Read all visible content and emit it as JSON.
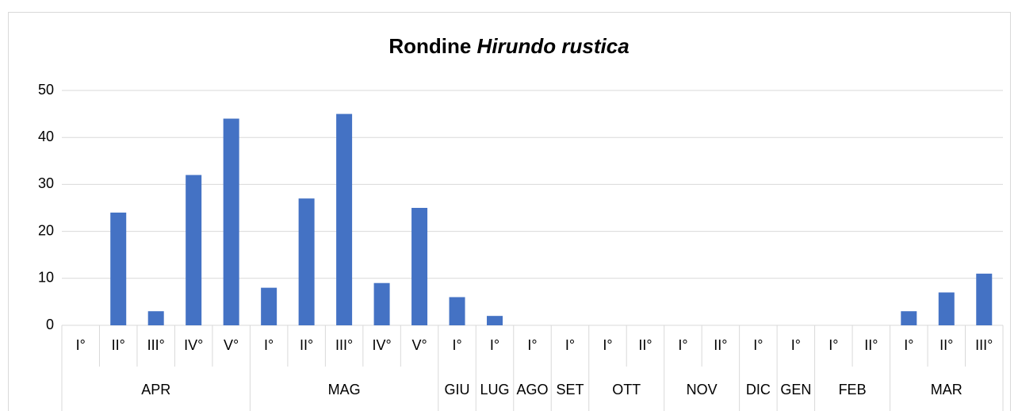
{
  "chart_data": {
    "type": "bar",
    "title_parts": [
      {
        "text": "Rondine"
      },
      {
        "text": "Hirundo rustica",
        "italic": true
      }
    ],
    "color": "#4472c4",
    "grid": true,
    "ylim": [
      0,
      50
    ],
    "yticks": [
      0,
      10,
      20,
      30,
      40,
      50
    ],
    "groups": [
      {
        "label": "APR",
        "categories": [
          "I°",
          "II°",
          "III°",
          "IV°",
          "V°"
        ],
        "values": [
          0,
          24,
          3,
          32,
          44
        ]
      },
      {
        "label": "MAG",
        "categories": [
          "I°",
          "II°",
          "III°",
          "IV°",
          "V°"
        ],
        "values": [
          8,
          27,
          45,
          9,
          25
        ]
      },
      {
        "label": "GIU",
        "categories": [
          "I°"
        ],
        "values": [
          6
        ]
      },
      {
        "label": "LUG",
        "categories": [
          "I°"
        ],
        "values": [
          2
        ]
      },
      {
        "label": "AGO",
        "categories": [
          "I°"
        ],
        "values": [
          0
        ]
      },
      {
        "label": "SET",
        "categories": [
          "I°"
        ],
        "values": [
          0
        ]
      },
      {
        "label": "OTT",
        "categories": [
          "I°",
          "II°"
        ],
        "values": [
          0,
          0
        ]
      },
      {
        "label": "NOV",
        "categories": [
          "I°",
          "II°"
        ],
        "values": [
          0,
          0
        ]
      },
      {
        "label": "DIC",
        "categories": [
          "I°"
        ],
        "values": [
          0
        ]
      },
      {
        "label": "GEN",
        "categories": [
          "I°"
        ],
        "values": [
          0
        ]
      },
      {
        "label": "FEB",
        "categories": [
          "I°",
          "II°"
        ],
        "values": [
          0,
          0
        ]
      },
      {
        "label": "MAR",
        "categories": [
          "I°",
          "II°",
          "III°"
        ],
        "values": [
          3,
          7,
          11
        ]
      }
    ]
  }
}
